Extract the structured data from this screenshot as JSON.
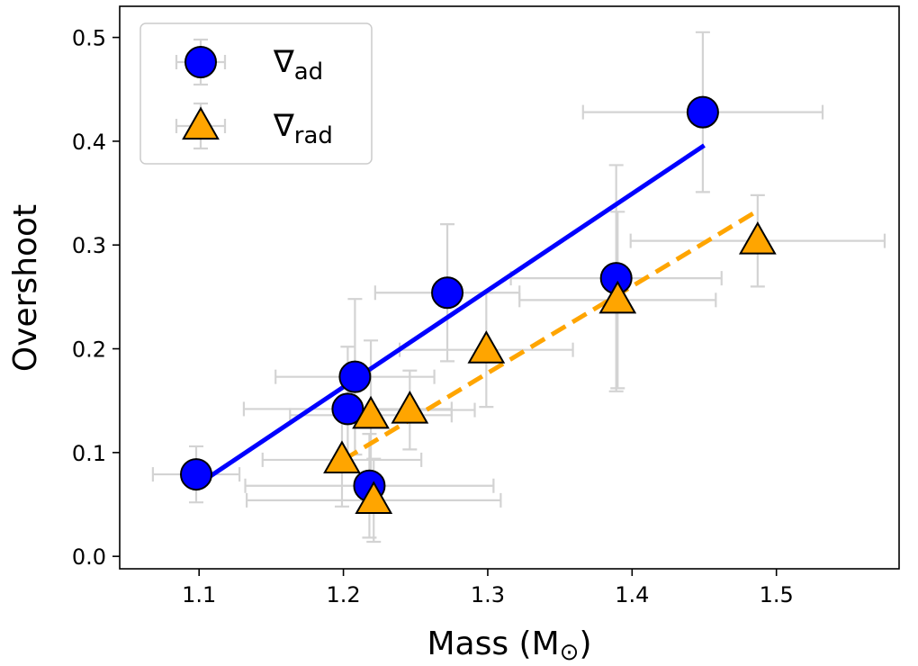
{
  "chart_data": {
    "type": "scatter",
    "title": "",
    "xlabel": "Mass (M",
    "xlabel_symbol": "⊙",
    "xlabel_close": ")",
    "ylabel": "Overshoot",
    "xlim": [
      1.045,
      1.585
    ],
    "ylim": [
      -0.012,
      0.53
    ],
    "xticks": [
      1.1,
      1.2,
      1.3,
      1.4,
      1.5
    ],
    "xtick_labels": [
      "1.1",
      "1.2",
      "1.3",
      "1.4",
      "1.5"
    ],
    "yticks": [
      0.0,
      0.1,
      0.2,
      0.3,
      0.4,
      0.5
    ],
    "ytick_labels": [
      "0.0",
      "0.1",
      "0.2",
      "0.3",
      "0.4",
      "0.5"
    ],
    "grid": false,
    "legend_position": "top-left",
    "series": [
      {
        "name": "ad",
        "legend_symbol": "∇",
        "legend_subscript": "ad",
        "marker": "circle",
        "color": "#0000ff",
        "points": [
          {
            "x": 1.098,
            "y": 0.079,
            "xerr": 0.03,
            "yerr": 0.027
          },
          {
            "x": 1.203,
            "y": 0.142,
            "xerr": 0.072,
            "yerr": 0.06
          },
          {
            "x": 1.208,
            "y": 0.173,
            "xerr": 0.055,
            "yerr": 0.075
          },
          {
            "x": 1.218,
            "y": 0.068,
            "xerr": 0.086,
            "yerr": 0.05
          },
          {
            "x": 1.272,
            "y": 0.254,
            "xerr": 0.05,
            "yerr": 0.066
          },
          {
            "x": 1.389,
            "y": 0.268,
            "xerr": 0.073,
            "yerr": 0.109
          },
          {
            "x": 1.449,
            "y": 0.428,
            "xerr": 0.083,
            "yerr": 0.077
          }
        ],
        "fit": {
          "x": [
            1.1,
            1.45
          ],
          "y": [
            0.07,
            0.396
          ],
          "style": "solid"
        }
      },
      {
        "name": "rad",
        "legend_symbol": "∇",
        "legend_subscript": "rad",
        "marker": "triangle",
        "color": "#ffa500",
        "points": [
          {
            "x": 1.199,
            "y": 0.093,
            "xerr": 0.055,
            "yerr": 0.045
          },
          {
            "x": 1.219,
            "y": 0.136,
            "xerr": 0.056,
            "yerr": 0.072
          },
          {
            "x": 1.221,
            "y": 0.054,
            "xerr": 0.088,
            "yerr": 0.04
          },
          {
            "x": 1.246,
            "y": 0.141,
            "xerr": 0.045,
            "yerr": 0.038
          },
          {
            "x": 1.299,
            "y": 0.199,
            "xerr": 0.06,
            "yerr": 0.055
          },
          {
            "x": 1.39,
            "y": 0.247,
            "xerr": 0.068,
            "yerr": 0.085
          },
          {
            "x": 1.487,
            "y": 0.304,
            "xerr": 0.088,
            "yerr": 0.044
          }
        ],
        "fit": {
          "x": [
            1.2,
            1.487
          ],
          "y": [
            0.093,
            0.333
          ],
          "style": "dashed"
        }
      }
    ]
  },
  "colors": {
    "errorbar": "#d3d3d3",
    "axis": "#000000",
    "legend_border": "#cccccc"
  }
}
